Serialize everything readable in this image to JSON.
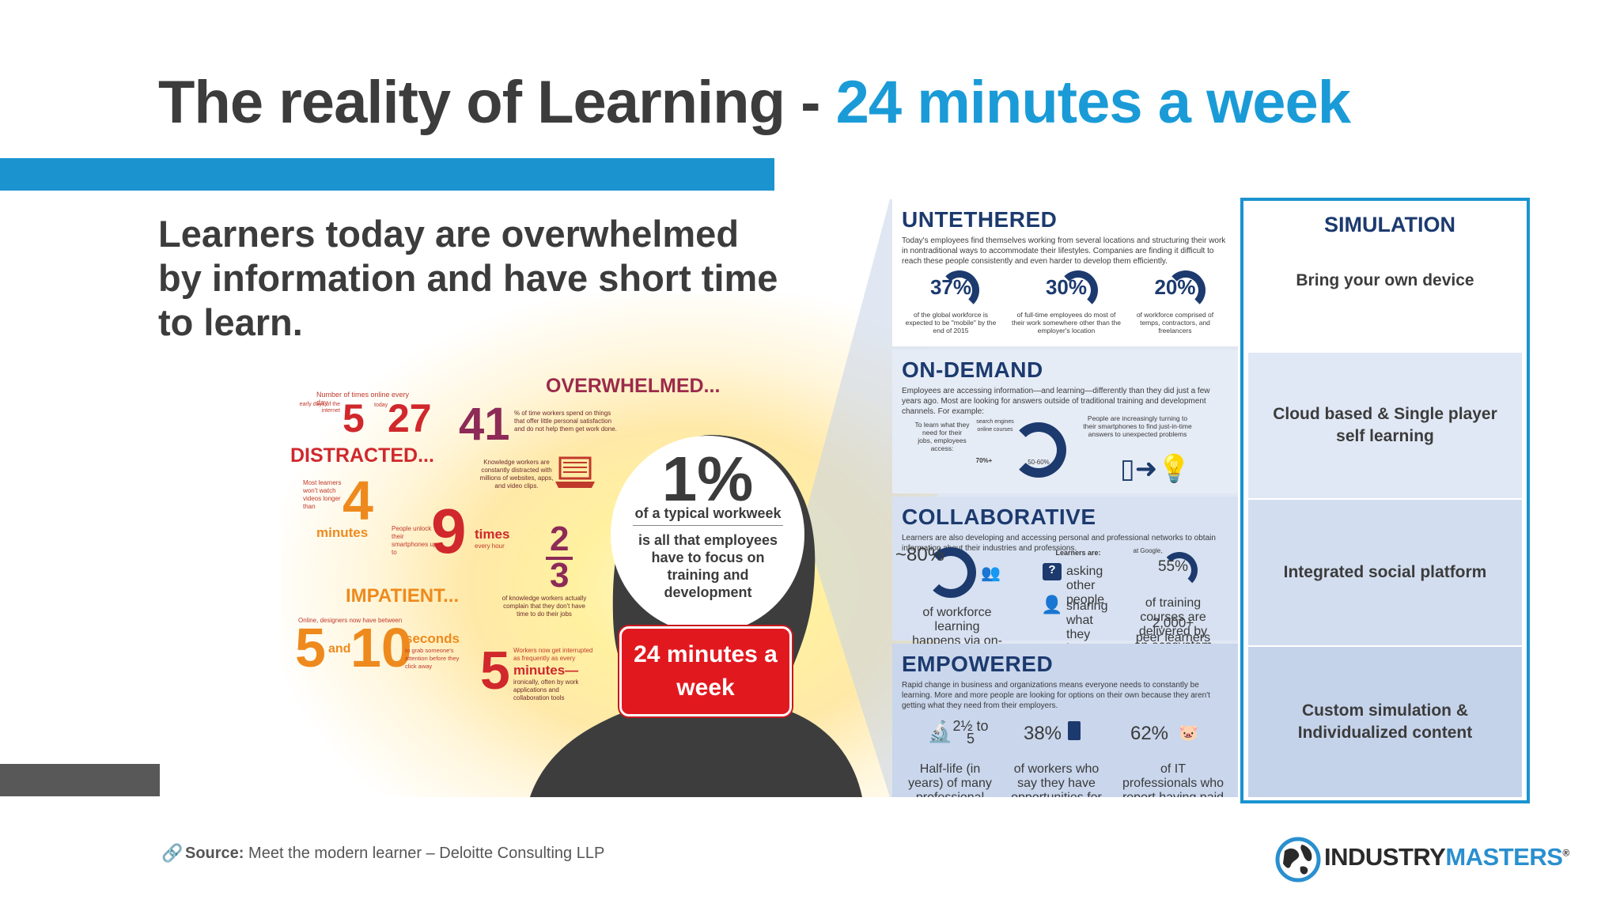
{
  "header": {
    "title_dark": "The reality of Learning - ",
    "title_highlight": "24 minutes a week",
    "subtitle": "Learners today are overwhelmed by information and have short time to learn."
  },
  "infographic": {
    "left": {
      "online_title": "Number of times online every day",
      "early_label": "early days of the internet",
      "today_label": "today",
      "early_value": "5",
      "today_value": "27",
      "distracted": "DISTRACTED...",
      "overwhelmed": "OVERWHELMED...",
      "stat41": "41",
      "stat41_text": "% of time workers spend on things that offer little personal satisfaction and do not help them get work done.",
      "knowledge_text": "Knowledge workers are constantly distracted with millions of websites, apps, and video clips.",
      "watch_text": "Most learners won't watch videos longer than",
      "watch_value": "4",
      "watch_unit": "minutes",
      "unlock_text": "People unlock their smartphones up to",
      "unlock_value": "9",
      "unlock_unit": "times",
      "unlock_unit2": "every hour",
      "fraction_num": "2",
      "fraction_den": "3",
      "fraction_text": "of knowledge workers actually complain that they don't have time to do their jobs",
      "impatient": "IMPATIENT...",
      "designers_text": "Online, designers now have between",
      "seconds_a": "5",
      "seconds_and": "and",
      "seconds_b": "10",
      "seconds_unit": "seconds",
      "seconds_text": "to grab someone's attention before they click away",
      "interrupt_value": "5",
      "interrupt_pre": "Workers now get interrupted as frequently as every",
      "interrupt_unit": "minutes—",
      "interrupt_text": "ironically, often by work applications and collaboration tools"
    },
    "head": {
      "pct": "1%",
      "pct_desc": "of a typical workweek",
      "focus": "is all that employees have to focus on training and development",
      "red_box": "24 minutes a week"
    },
    "untethered": {
      "title": "UNTETHERED",
      "text": "Today's employees find themselves working from several locations and structuring their work in nontraditional ways to accommodate their lifestyles. Companies are finding it difficult to reach these people consistently and even harder to develop them efficiently.",
      "stats": [
        {
          "value": "37%",
          "desc": "of the global workforce is expected to be \"mobile\" by the end of 2015"
        },
        {
          "value": "30%",
          "desc": "of full-time employees do most of their work somewhere other than the employer's location"
        },
        {
          "value": "20%",
          "desc": "of workforce comprised of temps, contractors, and freelancers"
        }
      ]
    },
    "ondemand": {
      "title": "ON-DEMAND",
      "text": "Employees are accessing information—and learning—differently than they did just a few years ago. Most are looking for answers outside of traditional training and development channels. For example:",
      "learn_text": "To learn what they need for their jobs, employees access:",
      "search_label": "search engines",
      "online_label": "online courses",
      "pct_a": "70%+",
      "pct_b": "50-60%",
      "phone_text": "People are increasingly turning to their smartphones to find just-in-time answers to unexpected problems"
    },
    "collaborative": {
      "title": "COLLABORATIVE",
      "text": "Learners are also developing and accessing personal and professional networks to obtain information about their industries and professions.",
      "pct80": "~80%",
      "pct80_text": "of workforce learning happens via on-the-job interactions with peers, teammates, and managers",
      "learners_are": "Learners are:",
      "asking": "asking other people",
      "sharing": "sharing what they know",
      "google_label": "at Google,",
      "pct55": "55%",
      "pct55_text": "of training courses are delivered by an ecosystem of",
      "peers_value": "2,000+",
      "peers_label": "peer learners"
    },
    "empowered": {
      "title": "EMPOWERED",
      "text": "Rapid change in business and organizations means everyone needs to constantly be learning. More and more people are looking for options on their own because they aren't getting what they need from their employers.",
      "stats": [
        {
          "value": "2½ to 5",
          "desc": "Half-life (in years) of many professional skills"
        },
        {
          "value": "38%",
          "desc": "of workers who say they have opportunities for learning and growth at their workplace"
        },
        {
          "value": "62%",
          "desc": "of IT professionals who report having paid for training out of their own pockets"
        }
      ]
    }
  },
  "simulation": {
    "header": "SIMULATION",
    "items": [
      "Bring your own device",
      "Cloud based & Single player self learning",
      "Integrated social platform",
      "Custom simulation & Individualized content"
    ]
  },
  "footer": {
    "source_label": "Source:",
    "source_text": "Meet the modern learner – Deloitte Consulting LLP",
    "logo_industry": "INDUSTRY",
    "logo_masters": "MASTERS",
    "logo_reg": "®"
  },
  "colors": {
    "accent_blue": "#1a93cf",
    "title_blue": "#1a9bd7",
    "red": "#e1191f",
    "navy": "#1c3a6e",
    "orange": "#ee8a1d"
  }
}
